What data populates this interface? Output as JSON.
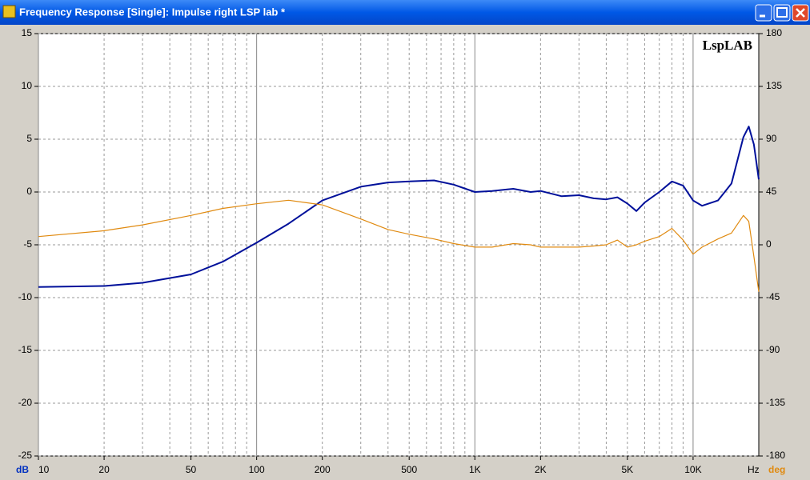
{
  "window_title": "Frequency Response [Single]: Impulse right LSP lab *",
  "chart_data": {
    "type": "line",
    "watermark": "LspLAB",
    "xlabel": "Hz",
    "ylabel": "dB",
    "y2label": "deg",
    "log_x": true,
    "grid": true,
    "xlim": [
      10,
      20000
    ],
    "xticks": [
      10,
      20,
      50,
      100,
      200,
      500,
      {
        "value": 1000,
        "label": "1K"
      },
      {
        "value": 2000,
        "label": "2K"
      },
      {
        "value": 5000,
        "label": "5K"
      },
      {
        "value": 10000,
        "label": "10K"
      }
    ],
    "minor_xticks": [
      30,
      40,
      60,
      70,
      80,
      90,
      300,
      400,
      600,
      700,
      800,
      900,
      3000,
      4000,
      6000,
      7000,
      8000,
      9000
    ],
    "ylim": [
      -25,
      15
    ],
    "yticks": [
      -25,
      -20,
      -15,
      -10,
      -5,
      0,
      5,
      10,
      15
    ],
    "y2lim": [
      -180,
      180
    ],
    "y2ticks": [
      -180,
      -135,
      -90,
      -45,
      0,
      45,
      90,
      135,
      180
    ],
    "x": [
      10,
      20,
      30,
      50,
      70,
      100,
      140,
      200,
      300,
      400,
      500,
      650,
      800,
      1000,
      1200,
      1500,
      1800,
      2000,
      2500,
      3000,
      3500,
      4000,
      4500,
      5000,
      5500,
      6000,
      7000,
      8000,
      9000,
      10000,
      11000,
      13000,
      15000,
      17000,
      18000,
      19000,
      20000
    ],
    "series": [
      {
        "color": "#00109a",
        "values": [
          -9,
          -8.9,
          -8.6,
          -7.8,
          -6.6,
          -4.8,
          -3,
          -0.8,
          0.5,
          0.9,
          1,
          1.1,
          0.7,
          0,
          0.1,
          0.3,
          0,
          0.1,
          -0.4,
          -0.3,
          -0.6,
          -0.7,
          -0.5,
          -1.1,
          -1.8,
          -1,
          0,
          1,
          0.6,
          -0.8,
          -1.3,
          -0.8,
          0.8,
          5.2,
          6.2,
          4.5,
          1.2
        ]
      },
      {
        "color": "#e08a10",
        "axis": "y2",
        "values": [
          7,
          12,
          17,
          25,
          31,
          35,
          38,
          34,
          22,
          13,
          9,
          5,
          1,
          -2,
          -2,
          1,
          0,
          -2,
          -2,
          -2,
          -1,
          0,
          4,
          -2,
          0,
          3,
          7,
          14,
          4,
          -8,
          -2,
          5,
          10,
          25,
          20,
          -10,
          -40
        ]
      }
    ]
  }
}
